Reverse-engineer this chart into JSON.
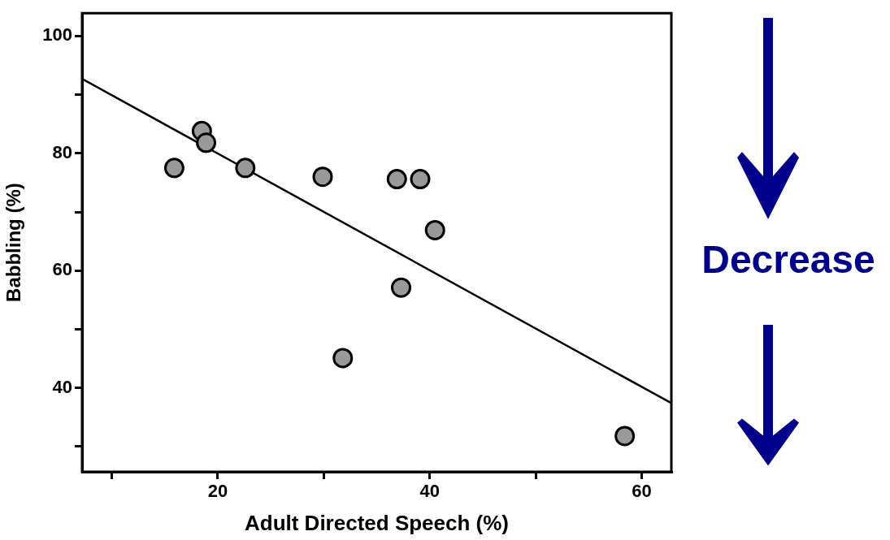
{
  "chart_data": {
    "type": "scatter",
    "xlabel": "Adult Directed Speech (%)",
    "ylabel": "Babbling (%)",
    "xlim": [
      7.2,
      62.8
    ],
    "xticks": [
      {
        "value": 10,
        "label": null
      },
      20,
      {
        "value": 30,
        "label": null
      },
      40,
      {
        "value": 50,
        "label": null
      },
      60
    ],
    "ylim": [
      25.7,
      103.9
    ],
    "yticks": [
      {
        "value": 30,
        "label": null
      },
      40,
      {
        "value": 50,
        "label": null
      },
      60,
      {
        "value": 70,
        "label": null
      },
      80,
      {
        "value": 90,
        "label": null
      },
      100
    ],
    "grid": false,
    "legend": false,
    "marker": "circle",
    "series": [
      {
        "color": "#999999",
        "x": [
          15.9,
          18.5,
          18.9,
          22.6,
          29.9,
          36.9,
          39.1,
          40.5,
          37.3,
          31.8,
          58.4
        ],
        "values": [
          77.5,
          83.8,
          81.8,
          77.5,
          76.0,
          75.6,
          75.6,
          66.9,
          57.1,
          45.1,
          31.8
        ]
      },
      {
        "type": "line",
        "color": "#000000",
        "marker": "none",
        "x": [
          7.2,
          62.8
        ],
        "values": [
          92.7,
          37.4
        ]
      }
    ],
    "annotations": [
      "Decrease"
    ]
  }
}
